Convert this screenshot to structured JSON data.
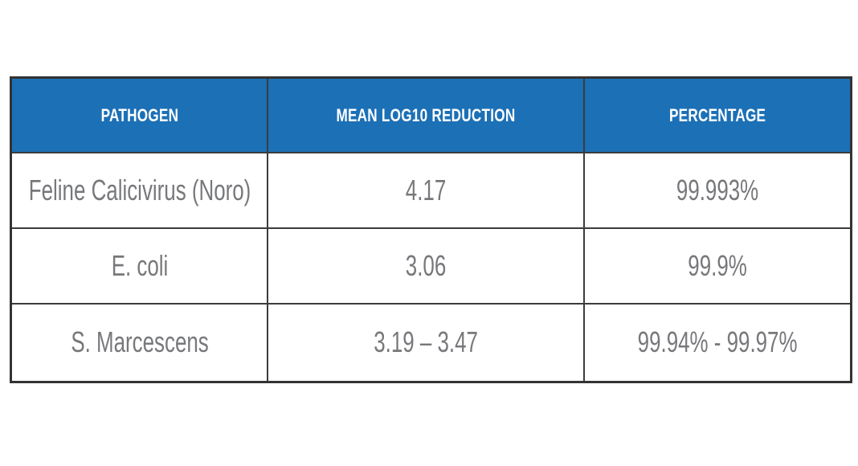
{
  "table": {
    "accent_color": "#1c70b6",
    "border_color": "#3c3c3c",
    "header_text_color": "#ffffff",
    "body_text_color": "#77787b",
    "columns": [
      "PATHOGEN",
      "MEAN LOG10 REDUCTION",
      "PERCENTAGE"
    ],
    "rows": [
      {
        "pathogen": "Feline Calicivirus (Noro)",
        "mean_log10_reduction": "4.17",
        "percentage": "99.993%"
      },
      {
        "pathogen": "E. coli",
        "mean_log10_reduction": "3.06",
        "percentage": "99.9%"
      },
      {
        "pathogen": "S. Marcescens",
        "mean_log10_reduction": "3.19 – 3.47",
        "percentage": "99.94% - 99.97%"
      }
    ]
  },
  "chart_data": {
    "type": "table",
    "title": "",
    "columns": [
      "PATHOGEN",
      "MEAN LOG10 REDUCTION",
      "PERCENTAGE"
    ],
    "rows": [
      [
        "Feline Calicivirus (Noro)",
        "4.17",
        "99.993%"
      ],
      [
        "E. coli",
        "3.06",
        "99.9%"
      ],
      [
        "S. Marcescens",
        "3.19 – 3.47",
        "99.94% - 99.97%"
      ]
    ],
    "notes": "Blue header band, dark grid borders, gray condensed body text on white background"
  }
}
